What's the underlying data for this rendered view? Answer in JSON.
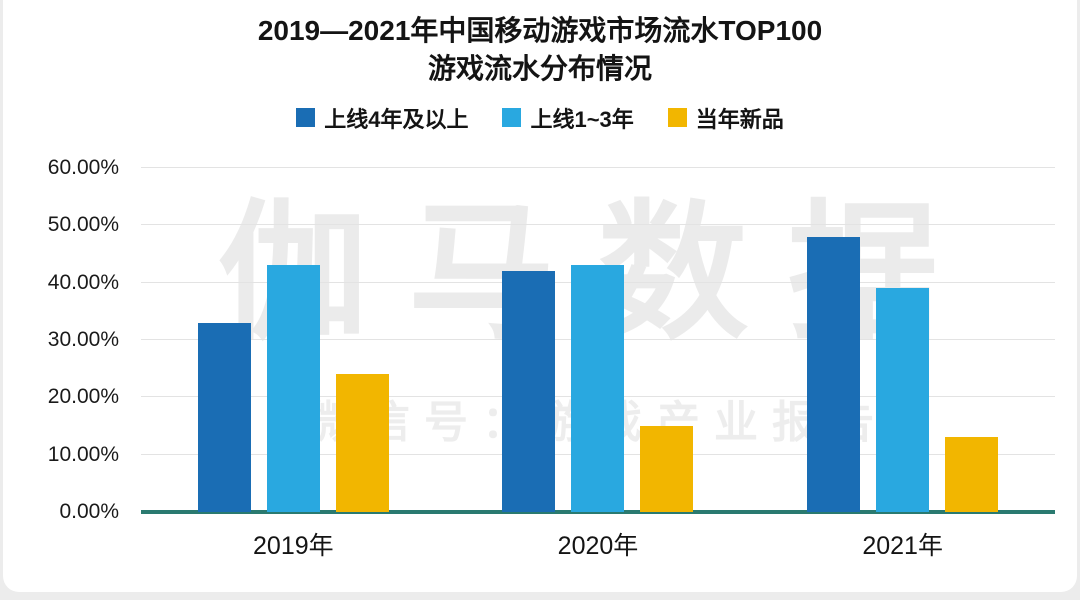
{
  "title": {
    "line1": "2019—2021年中国移动游戏市场流水TOP100",
    "line2": "游戏流水分布情况"
  },
  "watermark": {
    "line1": "伽马数据",
    "line2": "微信号：游戏产业报告"
  },
  "chart_data": {
    "type": "bar",
    "title": "2019—2021年中国移动游戏市场流水TOP100游戏流水分布情况",
    "categories": [
      "2019年",
      "2020年",
      "2021年"
    ],
    "series": [
      {
        "name": "上线4年及以上",
        "color": "#1a6db4",
        "values": [
          33,
          42,
          48
        ]
      },
      {
        "name": "上线1~3年",
        "color": "#29a8e0",
        "values": [
          43,
          43,
          39
        ]
      },
      {
        "name": "当年新品",
        "color": "#f2b600",
        "values": [
          24,
          15,
          13
        ]
      }
    ],
    "xlabel": "",
    "ylabel": "",
    "ylim": [
      0,
      60
    ],
    "y_ticks": [
      "0.00%",
      "10.00%",
      "20.00%",
      "30.00%",
      "40.00%",
      "50.00%",
      "60.00%"
    ],
    "grid": true,
    "legend_position": "top"
  }
}
